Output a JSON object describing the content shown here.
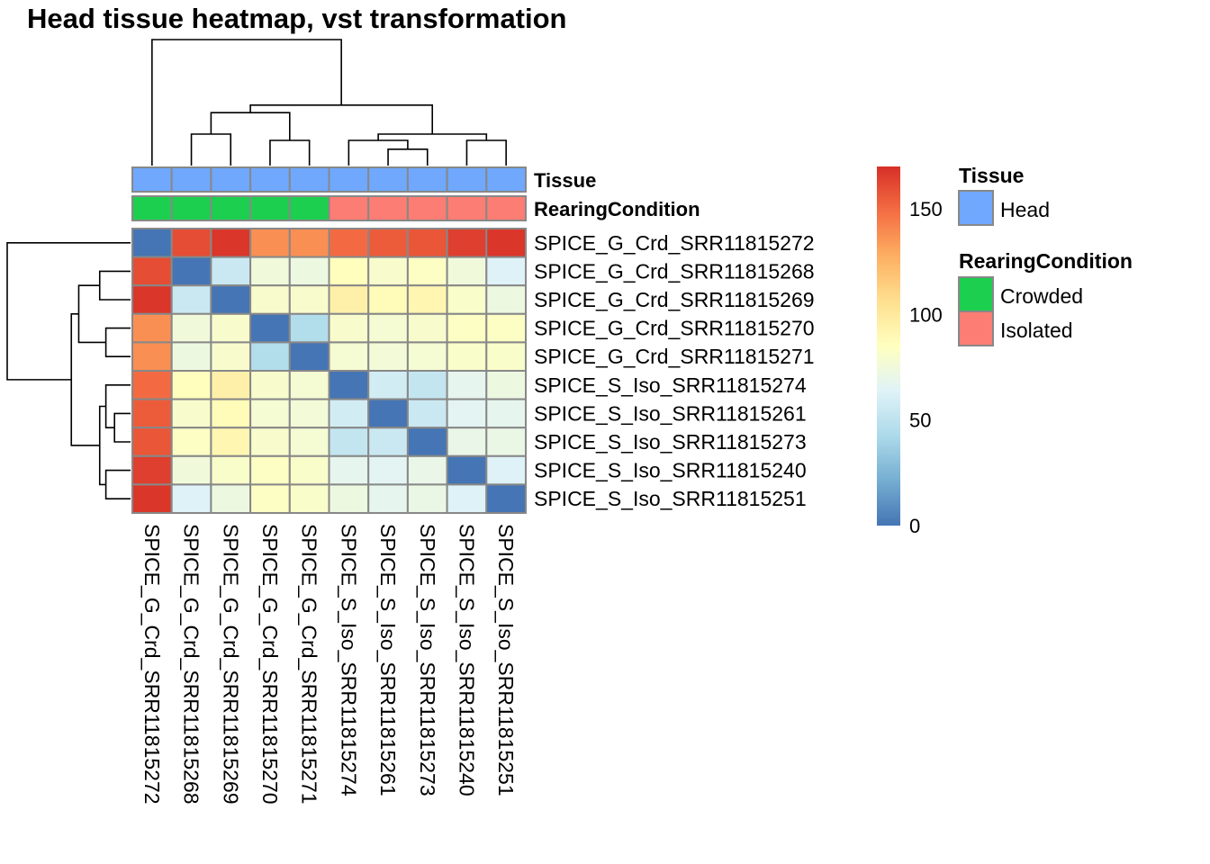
{
  "chart_data": {
    "type": "heatmap",
    "title": "Head tissue heatmap, vst transformation",
    "rows": [
      "SPICE_G_Crd_SRR11815272",
      "SPICE_G_Crd_SRR11815268",
      "SPICE_G_Crd_SRR11815269",
      "SPICE_G_Crd_SRR11815270",
      "SPICE_G_Crd_SRR11815271",
      "SPICE_S_Iso_SRR11815274",
      "SPICE_S_Iso_SRR11815261",
      "SPICE_S_Iso_SRR11815273",
      "SPICE_S_Iso_SRR11815240",
      "SPICE_S_Iso_SRR11815251"
    ],
    "columns": [
      "SPICE_G_Crd_SRR11815272",
      "SPICE_G_Crd_SRR11815268",
      "SPICE_G_Crd_SRR11815269",
      "SPICE_G_Crd_SRR11815270",
      "SPICE_G_Crd_SRR11815271",
      "SPICE_S_Iso_SRR11815274",
      "SPICE_S_Iso_SRR11815261",
      "SPICE_S_Iso_SRR11815273",
      "SPICE_S_Iso_SRR11815240",
      "SPICE_S_Iso_SRR11815251"
    ],
    "values": [
      [
        0,
        160,
        168,
        138,
        138,
        150,
        155,
        157,
        165,
        168
      ],
      [
        160,
        0,
        55,
        75,
        73,
        86,
        80,
        83,
        75,
        63
      ],
      [
        168,
        55,
        0,
        80,
        80,
        95,
        88,
        91,
        81,
        73
      ],
      [
        138,
        75,
        80,
        0,
        45,
        80,
        78,
        80,
        83,
        83
      ],
      [
        138,
        73,
        80,
        45,
        0,
        78,
        76,
        78,
        81,
        81
      ],
      [
        150,
        86,
        95,
        80,
        78,
        0,
        58,
        52,
        68,
        73
      ],
      [
        155,
        80,
        88,
        78,
        76,
        58,
        0,
        55,
        66,
        68
      ],
      [
        157,
        83,
        91,
        80,
        78,
        52,
        55,
        0,
        70,
        71
      ],
      [
        165,
        75,
        81,
        83,
        81,
        68,
        66,
        70,
        0,
        63
      ],
      [
        168,
        63,
        73,
        83,
        81,
        73,
        68,
        71,
        63,
        0
      ]
    ],
    "color_scale": {
      "min": 0,
      "max": 170,
      "stops": [
        {
          "value": 0,
          "color": "#4575b4"
        },
        {
          "value": 21,
          "color": "#74add1"
        },
        {
          "value": 42,
          "color": "#abd9e9"
        },
        {
          "value": 64,
          "color": "#e0f3f8"
        },
        {
          "value": 85,
          "color": "#ffffbf"
        },
        {
          "value": 106,
          "color": "#fee090"
        },
        {
          "value": 128,
          "color": "#fdae61"
        },
        {
          "value": 149,
          "color": "#f46d43"
        },
        {
          "value": 170,
          "color": "#d73027"
        }
      ],
      "ticks": [
        0,
        50,
        100,
        150
      ]
    },
    "annotation_tracks": [
      {
        "name": "Tissue",
        "values": [
          "Head",
          "Head",
          "Head",
          "Head",
          "Head",
          "Head",
          "Head",
          "Head",
          "Head",
          "Head"
        ]
      },
      {
        "name": "RearingCondition",
        "values": [
          "Crowded",
          "Crowded",
          "Crowded",
          "Crowded",
          "Crowded",
          "Isolated",
          "Isolated",
          "Isolated",
          "Isolated",
          "Isolated"
        ]
      }
    ],
    "legend": [
      {
        "title": "Tissue",
        "items": [
          {
            "label": "Head",
            "color": "#6fa8fd"
          }
        ]
      },
      {
        "title": "RearingCondition",
        "items": [
          {
            "label": "Crowded",
            "color": "#1ccf4e"
          },
          {
            "label": "Isolated",
            "color": "#fc7d73"
          }
        ]
      }
    ],
    "legend_position": "right",
    "dendrogram": {
      "leaf_order": [
        0,
        1,
        2,
        3,
        4,
        5,
        6,
        7,
        8,
        9
      ],
      "merges": [
        {
          "a": 1,
          "b": 2,
          "height": 0.25
        },
        {
          "a": 3,
          "b": 4,
          "height": 0.2
        },
        {
          "a": 8,
          "b": 9,
          "height": 0.2
        },
        {
          "a": 6,
          "b": 7,
          "height": 0.13
        },
        {
          "a": 5,
          "b": "m3",
          "height": 0.2
        },
        {
          "a": "m4",
          "b": "m2",
          "height": 0.25
        },
        {
          "a": "m0",
          "b": "m1",
          "height": 0.42
        },
        {
          "a": "m6",
          "b": "m5",
          "height": 0.48
        },
        {
          "a": 0,
          "b": "m7",
          "height": 1.0
        }
      ]
    }
  }
}
